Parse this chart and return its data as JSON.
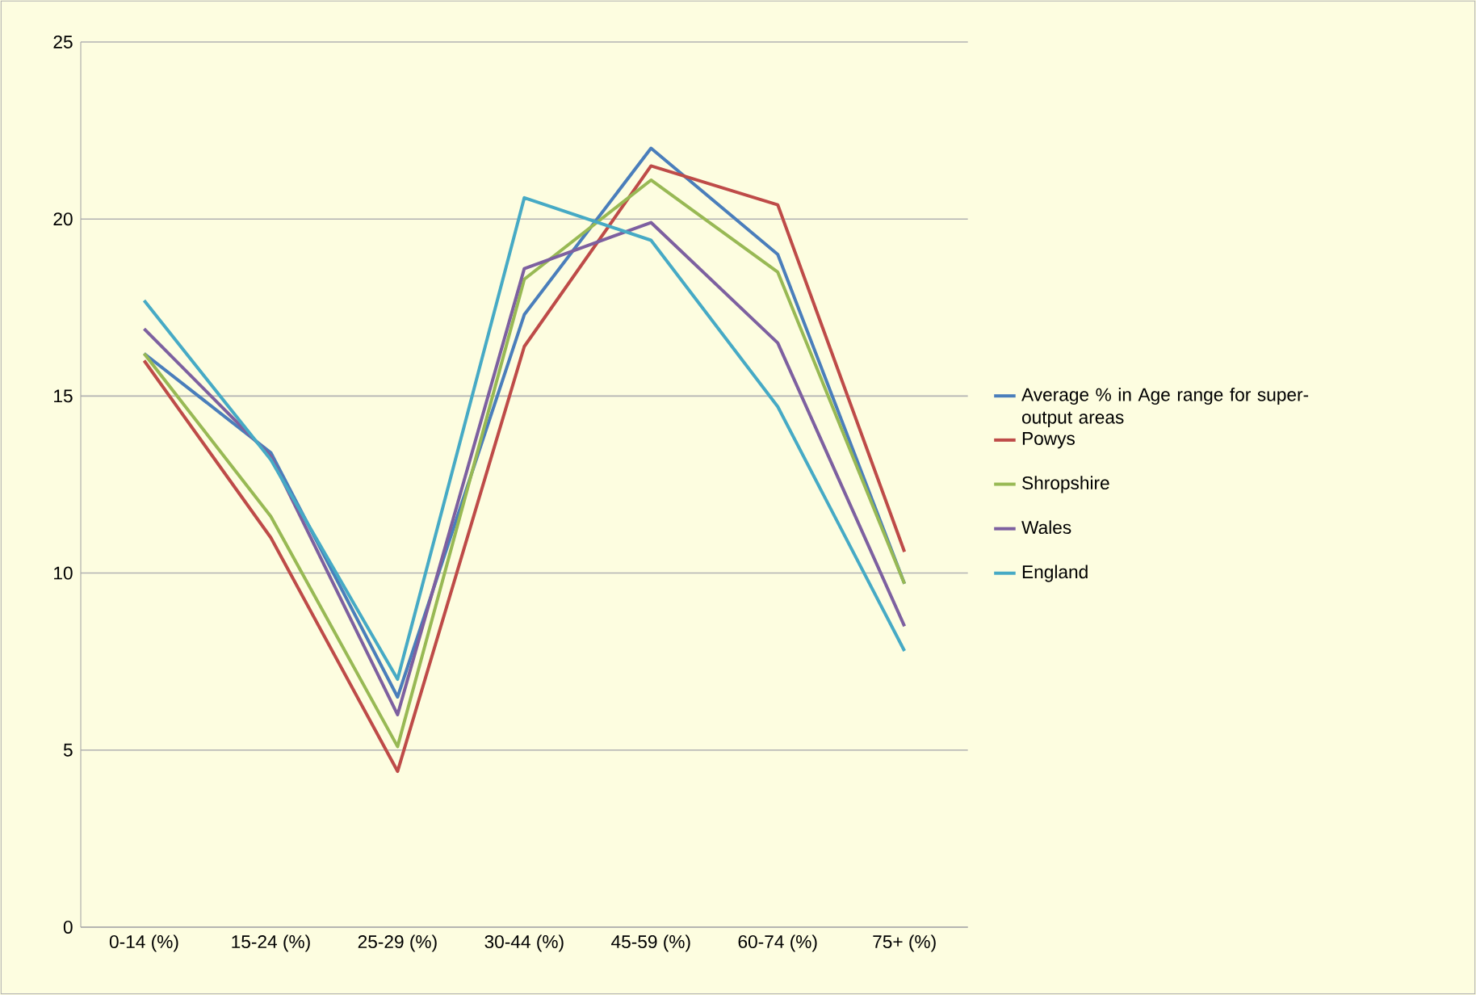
{
  "chart_data": {
    "type": "line",
    "categories": [
      "0-14 (%)",
      "15-24 (%)",
      "25-29 (%)",
      "30-44 (%)",
      "45-59 (%)",
      "60-74 (%)",
      "75+ (%)"
    ],
    "series": [
      {
        "name": "Average % in Age range for super-output areas",
        "color": "#4a7ebb",
        "values": [
          16.2,
          13.4,
          6.5,
          17.3,
          22.0,
          19.0,
          9.7
        ]
      },
      {
        "name": "Powys",
        "color": "#be4b48",
        "values": [
          16.0,
          11.0,
          4.4,
          16.4,
          21.5,
          20.4,
          10.6
        ]
      },
      {
        "name": "Shropshire",
        "color": "#98b954",
        "values": [
          16.2,
          11.6,
          5.1,
          18.3,
          21.1,
          18.5,
          9.7
        ]
      },
      {
        "name": "Wales",
        "color": "#7d60a0",
        "values": [
          16.9,
          13.3,
          6.0,
          18.6,
          19.9,
          16.5,
          8.5
        ]
      },
      {
        "name": "England",
        "color": "#46aac5",
        "values": [
          17.7,
          13.2,
          7.0,
          20.6,
          19.4,
          14.7,
          7.8
        ]
      }
    ],
    "ylim": [
      0,
      25
    ],
    "yticks": [
      0,
      5,
      10,
      15,
      20,
      25
    ],
    "grid": "y",
    "legend": "right",
    "marker": "none",
    "line_style": "solid"
  }
}
